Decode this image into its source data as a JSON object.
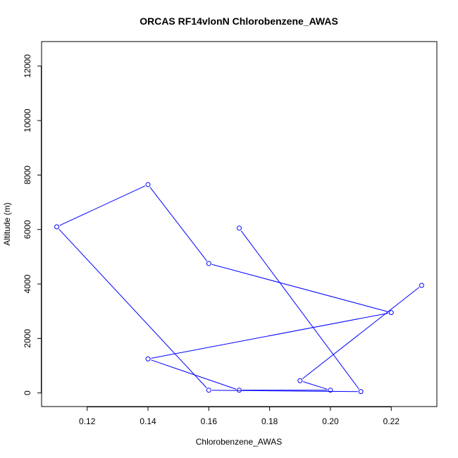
{
  "chart_data": {
    "type": "line",
    "title": "ORCAS RF14vlonN Chlorobenzene_AWAS",
    "xlabel": "Chlorobenzene_AWAS",
    "ylabel": "Altitude (m)",
    "xlim": [
      0.105,
      0.235
    ],
    "ylim": [
      -500,
      12900
    ],
    "x_ticks": [
      0.12,
      0.14,
      0.16,
      0.18,
      0.2,
      0.22
    ],
    "x_tick_labels": [
      "0.12",
      "0.14",
      "0.16",
      "0.18",
      "0.20",
      "0.22"
    ],
    "y_ticks": [
      0,
      2000,
      4000,
      6000,
      8000,
      10000,
      12000
    ],
    "y_tick_labels": [
      "0",
      "2000",
      "4000",
      "6000",
      "8000",
      "10000",
      "12000"
    ],
    "grid": false,
    "series": [
      {
        "color": "#0000ff",
        "marker": "open-circle",
        "points": [
          {
            "x": 0.17,
            "y": 6050
          },
          {
            "x": 0.21,
            "y": 50
          },
          {
            "x": 0.16,
            "y": 100
          },
          {
            "x": 0.11,
            "y": 6100
          },
          {
            "x": 0.14,
            "y": 7650
          },
          {
            "x": 0.16,
            "y": 4750
          },
          {
            "x": 0.22,
            "y": 2950
          },
          {
            "x": 0.14,
            "y": 1250
          },
          {
            "x": 0.17,
            "y": 100
          },
          {
            "x": 0.2,
            "y": 100
          },
          {
            "x": 0.19,
            "y": 450
          },
          {
            "x": 0.23,
            "y": 3950
          }
        ]
      }
    ]
  }
}
